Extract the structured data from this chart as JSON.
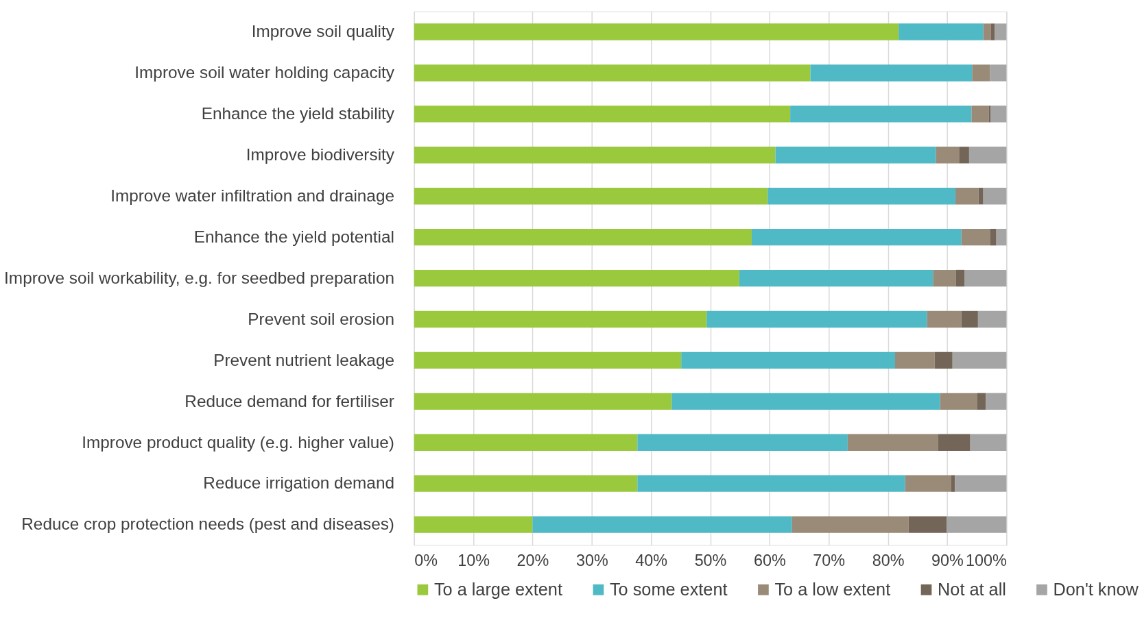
{
  "chart_data": {
    "type": "bar",
    "orientation": "horizontal",
    "stacked": true,
    "categories": [
      "Improve soil quality",
      "Improve soil water holding capacity",
      "Enhance the yield stability",
      "Improve biodiversity",
      "Improve water infiltration and drainage",
      "Enhance the yield potential",
      "Improve soil workability, e.g. for seedbed preparation",
      "Prevent soil erosion",
      "Prevent nutrient leakage",
      "Reduce demand for fertiliser",
      "Improve product quality (e.g. higher value)",
      "Reduce irrigation demand",
      "Reduce crop protection needs (pest and diseases)"
    ],
    "series": [
      {
        "name": "To a large extent",
        "color": "#9ac93d",
        "values": [
          81.8,
          66.9,
          63.5,
          61.0,
          59.7,
          57.0,
          54.9,
          49.4,
          45.1,
          43.5,
          37.7,
          37.7,
          20.0
        ]
      },
      {
        "name": "To some extent",
        "color": "#4fb9c5",
        "values": [
          14.3,
          27.3,
          30.6,
          27.1,
          31.7,
          35.4,
          32.7,
          37.2,
          36.1,
          45.3,
          35.5,
          45.2,
          43.8
        ]
      },
      {
        "name": "To a low extent",
        "color": "#9a8a78",
        "values": [
          1.3,
          3.0,
          2.9,
          3.9,
          3.9,
          4.9,
          3.9,
          5.8,
          6.7,
          6.3,
          15.3,
          7.8,
          19.7
        ]
      },
      {
        "name": "Not at all",
        "color": "#736658",
        "values": [
          0.6,
          0.0,
          0.3,
          1.7,
          0.8,
          1.0,
          1.4,
          2.8,
          3.0,
          1.4,
          5.4,
          0.6,
          6.4
        ]
      },
      {
        "name": "Don't know",
        "color": "#a5a5a5",
        "values": [
          2.0,
          2.8,
          2.7,
          6.3,
          3.9,
          1.7,
          7.1,
          4.8,
          9.1,
          3.5,
          6.1,
          8.7,
          10.1
        ]
      }
    ],
    "xlim": [
      0,
      100
    ],
    "xticks": [
      {
        "value": 0,
        "label": "0%"
      },
      {
        "value": 10,
        "label": "10%"
      },
      {
        "value": 20,
        "label": "20%"
      },
      {
        "value": 30,
        "label": "30%"
      },
      {
        "value": 40,
        "label": "40%"
      },
      {
        "value": 50,
        "label": "50%"
      },
      {
        "value": 60,
        "label": "60%"
      },
      {
        "value": 70,
        "label": "70%"
      },
      {
        "value": 80,
        "label": "80%"
      },
      {
        "value": 90,
        "label": "90%"
      },
      {
        "value": 100,
        "label": "100%"
      }
    ],
    "grid": "x",
    "legend": "bottom"
  }
}
